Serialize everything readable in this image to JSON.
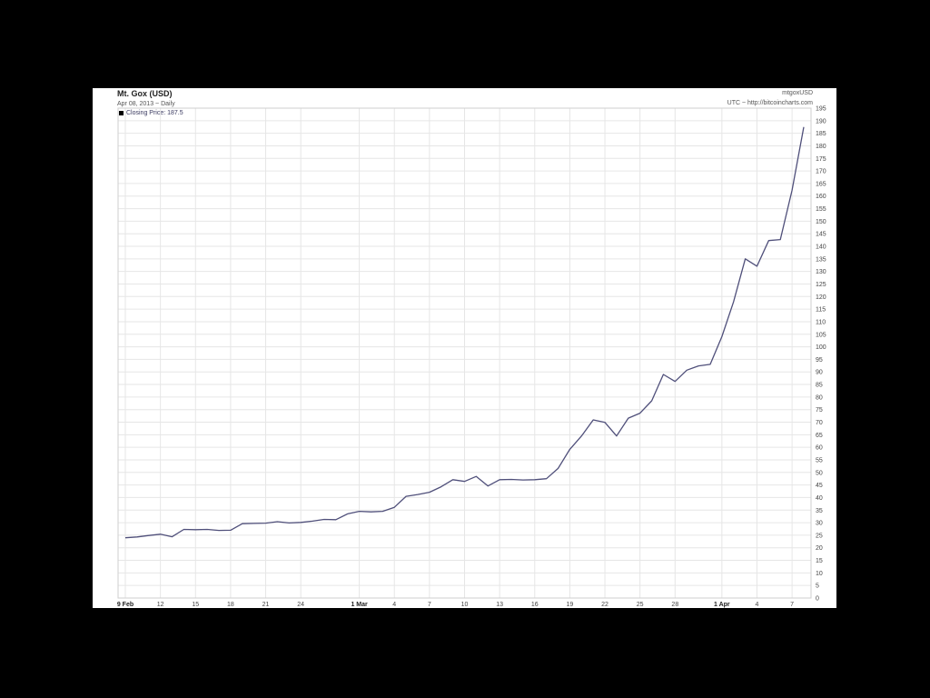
{
  "header": {
    "title": "Mt. Gox (USD)",
    "subtitle": "Apr 08, 2013 ~ Daily",
    "legend_label": "Closing Price: 187.5",
    "symbol": "mtgoxUSD",
    "source": "UTC ~ http://bitcoincharts.com"
  },
  "colors": {
    "line": "#4f4f7a",
    "grid": "#e6e6e6",
    "axis": "#cfcfcf"
  },
  "chart_data": {
    "type": "line",
    "title": "Mt. Gox (USD)",
    "xlabel": "",
    "ylabel": "",
    "ylim": [
      0,
      195
    ],
    "y_ticks": [
      0,
      5,
      10,
      15,
      20,
      25,
      30,
      35,
      40,
      45,
      50,
      55,
      60,
      65,
      70,
      75,
      80,
      85,
      90,
      95,
      100,
      105,
      110,
      115,
      120,
      125,
      130,
      135,
      140,
      145,
      150,
      155,
      160,
      165,
      170,
      175,
      180,
      185,
      190,
      195
    ],
    "x_ticks": [
      {
        "date": "2013-02-09",
        "label": "9 Feb",
        "major": true
      },
      {
        "date": "2013-02-12",
        "label": "12",
        "major": false
      },
      {
        "date": "2013-02-15",
        "label": "15",
        "major": false
      },
      {
        "date": "2013-02-18",
        "label": "18",
        "major": false
      },
      {
        "date": "2013-02-21",
        "label": "21",
        "major": false
      },
      {
        "date": "2013-02-24",
        "label": "24",
        "major": false
      },
      {
        "date": "2013-03-01",
        "label": "1 Mar",
        "major": true
      },
      {
        "date": "2013-03-04",
        "label": "4",
        "major": false
      },
      {
        "date": "2013-03-07",
        "label": "7",
        "major": false
      },
      {
        "date": "2013-03-10",
        "label": "10",
        "major": false
      },
      {
        "date": "2013-03-13",
        "label": "13",
        "major": false
      },
      {
        "date": "2013-03-16",
        "label": "16",
        "major": false
      },
      {
        "date": "2013-03-19",
        "label": "19",
        "major": false
      },
      {
        "date": "2013-03-22",
        "label": "22",
        "major": false
      },
      {
        "date": "2013-03-25",
        "label": "25",
        "major": false
      },
      {
        "date": "2013-03-28",
        "label": "28",
        "major": false
      },
      {
        "date": "2013-04-01",
        "label": "1 Apr",
        "major": true
      },
      {
        "date": "2013-04-04",
        "label": "4",
        "major": false
      },
      {
        "date": "2013-04-07",
        "label": "7",
        "major": false
      }
    ],
    "x_range": [
      "2013-02-09",
      "2013-04-08"
    ],
    "grid": true,
    "legend_position": "top-left",
    "series": [
      {
        "name": "Closing Price",
        "x": [
          "2013-02-09",
          "2013-02-10",
          "2013-02-11",
          "2013-02-12",
          "2013-02-13",
          "2013-02-14",
          "2013-02-15",
          "2013-02-16",
          "2013-02-17",
          "2013-02-18",
          "2013-02-19",
          "2013-02-20",
          "2013-02-21",
          "2013-02-22",
          "2013-02-23",
          "2013-02-24",
          "2013-02-25",
          "2013-02-26",
          "2013-02-27",
          "2013-02-28",
          "2013-03-01",
          "2013-03-02",
          "2013-03-03",
          "2013-03-04",
          "2013-03-05",
          "2013-03-06",
          "2013-03-07",
          "2013-03-08",
          "2013-03-09",
          "2013-03-10",
          "2013-03-11",
          "2013-03-12",
          "2013-03-13",
          "2013-03-14",
          "2013-03-15",
          "2013-03-16",
          "2013-03-17",
          "2013-03-18",
          "2013-03-19",
          "2013-03-20",
          "2013-03-21",
          "2013-03-22",
          "2013-03-23",
          "2013-03-24",
          "2013-03-25",
          "2013-03-26",
          "2013-03-27",
          "2013-03-28",
          "2013-03-29",
          "2013-03-30",
          "2013-03-31",
          "2013-04-01",
          "2013-04-02",
          "2013-04-03",
          "2013-04-04",
          "2013-04-05",
          "2013-04-06",
          "2013-04-07",
          "2013-04-08"
        ],
        "y": [
          24.0,
          24.3,
          24.9,
          25.4,
          24.4,
          27.3,
          27.2,
          27.3,
          26.9,
          27.0,
          29.6,
          29.7,
          29.8,
          30.4,
          29.9,
          30.1,
          30.6,
          31.3,
          31.2,
          33.5,
          34.5,
          34.3,
          34.5,
          36.1,
          40.5,
          41.2,
          42.1,
          44.3,
          47.1,
          46.4,
          48.4,
          44.6,
          47.1,
          47.2,
          47.0,
          47.1,
          47.5,
          51.6,
          59.2,
          64.5,
          70.9,
          69.9,
          64.5,
          71.6,
          73.6,
          78.5,
          89.0,
          86.2,
          90.7,
          92.4,
          93.0,
          104.0,
          117.9,
          135.0,
          132.1,
          142.3,
          142.7,
          162.3,
          187.5
        ]
      }
    ]
  }
}
